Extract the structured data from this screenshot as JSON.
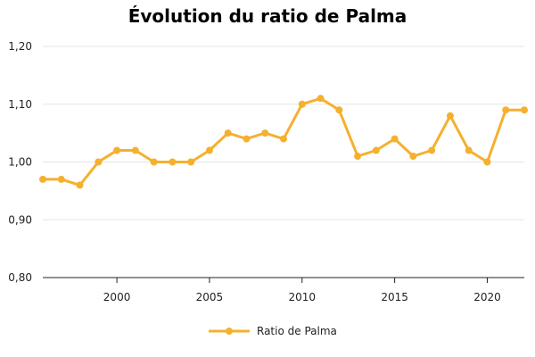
{
  "chart_data": {
    "type": "line",
    "title": "Évolution du ratio de Palma",
    "xlabel": "",
    "ylabel": "",
    "xlim": [
      1996,
      2022
    ],
    "ylim": [
      0.8,
      1.2
    ],
    "y_ticks": [
      "0,80",
      "0,90",
      "1,00",
      "1,10",
      "1,20"
    ],
    "y_tick_values": [
      0.8,
      0.9,
      1.0,
      1.1,
      1.2
    ],
    "x_ticks": [
      "2000",
      "2005",
      "2010",
      "2015",
      "2020"
    ],
    "x_tick_values": [
      2000,
      2005,
      2010,
      2015,
      2020
    ],
    "grid": "horizontal",
    "legend_position": "bottom",
    "series": [
      {
        "name": "Ratio de Palma",
        "color": "#f5b02e",
        "x": [
          1996,
          1997,
          1998,
          1999,
          2000,
          2001,
          2002,
          2003,
          2004,
          2005,
          2006,
          2007,
          2008,
          2009,
          2010,
          2011,
          2012,
          2013,
          2014,
          2015,
          2016,
          2017,
          2018,
          2019,
          2020,
          2021,
          2022
        ],
        "y": [
          0.97,
          0.97,
          0.96,
          1.0,
          1.02,
          1.02,
          1.0,
          1.0,
          1.0,
          1.02,
          1.05,
          1.04,
          1.05,
          1.04,
          1.1,
          1.11,
          1.09,
          1.01,
          1.02,
          1.04,
          1.01,
          1.02,
          1.08,
          1.02,
          1.0,
          1.09,
          1.09
        ]
      }
    ]
  }
}
